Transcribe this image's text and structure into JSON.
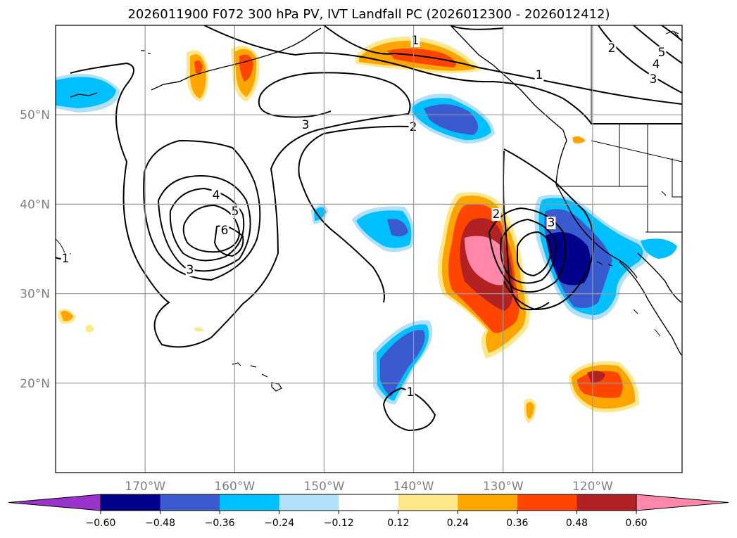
{
  "title": "2026011900 F072 300 hPa PV, IVT Landfall PC (2026012300 - 2026012412)",
  "map": {
    "lon_range": [
      -180,
      -110
    ],
    "lat_range": [
      10,
      60
    ],
    "lon_ticks": [
      {
        "value": -170,
        "label": "170°W"
      },
      {
        "value": -160,
        "label": "160°W"
      },
      {
        "value": -150,
        "label": "150°W"
      },
      {
        "value": -140,
        "label": "140°W"
      },
      {
        "value": -130,
        "label": "130°W"
      },
      {
        "value": -120,
        "label": "120°W"
      }
    ],
    "lat_ticks": [
      {
        "value": 20,
        "label": "20°N"
      },
      {
        "value": 30,
        "label": "30°N"
      },
      {
        "value": 40,
        "label": "40°N"
      },
      {
        "value": 50,
        "label": "50°N"
      }
    ],
    "pv_contour_labels": [
      "1",
      "1",
      "1",
      "1",
      "2",
      "2",
      "2",
      "3",
      "3",
      "3",
      "3",
      "4",
      "4",
      "5",
      "5",
      "6"
    ]
  },
  "colorbar": {
    "ticks": [
      "−0.60",
      "−0.48",
      "−0.36",
      "−0.24",
      "−0.12",
      "0.12",
      "0.24",
      "0.36",
      "0.48",
      "0.60"
    ],
    "colors": [
      "#9933cc",
      "#00008b",
      "#3a5bd0",
      "#00bfff",
      "#b0e0fa",
      "#ffffff",
      "#ffe88c",
      "#ffa500",
      "#ff4500",
      "#b22222",
      "#ff88aa",
      "#ff88aa"
    ],
    "extend": "both"
  },
  "colors": {
    "neg_extreme": "#00008b",
    "neg_strong": "#3a5bd0",
    "neg_mid": "#00bfff",
    "neg_weak": "#b0e0fa",
    "pos_weak": "#ffe88c",
    "pos_mid": "#ffa500",
    "pos_strong": "#ff4500",
    "pos_high": "#b22222",
    "pos_extreme": "#ff88aa"
  }
}
